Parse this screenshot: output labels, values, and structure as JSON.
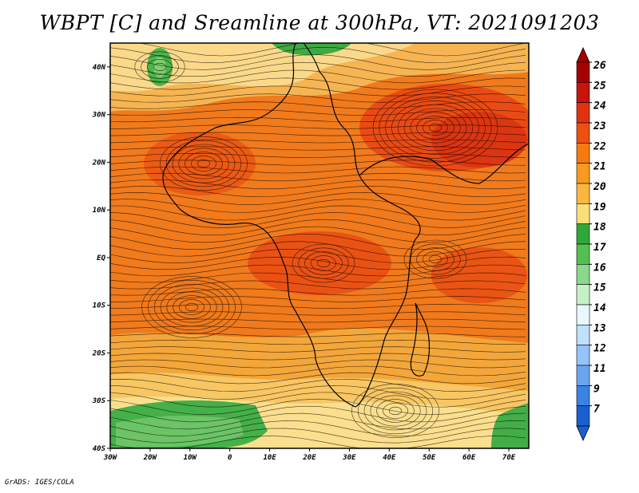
{
  "title": "WBPT [C] and Sreamline at 300hPa, VT: 2021091203",
  "footer": "GrADS: IGES/COLA",
  "map": {
    "lat_labels": [
      "40N",
      "30N",
      "20N",
      "10N",
      "EQ",
      "10S",
      "20S",
      "30S",
      "40S"
    ],
    "lon_labels": [
      "30W",
      "20W",
      "10W",
      "0",
      "10E",
      "20E",
      "30E",
      "40E",
      "50E",
      "60E",
      "70E"
    ],
    "lon_range": [
      -30,
      75
    ],
    "lat_range": [
      -40,
      45
    ]
  },
  "colorbar": {
    "labels": [
      "26",
      "25",
      "24",
      "23",
      "22",
      "21",
      "20",
      "19",
      "18",
      "17",
      "16",
      "15",
      "14",
      "13",
      "12",
      "11",
      "9",
      "7"
    ],
    "colors": [
      "#a50000",
      "#c8140a",
      "#e0320f",
      "#ef5010",
      "#f57a10",
      "#f89a1e",
      "#f8b840",
      "#fbe07a",
      "#2fa838",
      "#52c052",
      "#8ad88a",
      "#c8f0c8",
      "#e8f8ff",
      "#c0e0ff",
      "#94c4f8",
      "#6aa6f0",
      "#3a82e4",
      "#1a5ed0"
    ]
  }
}
